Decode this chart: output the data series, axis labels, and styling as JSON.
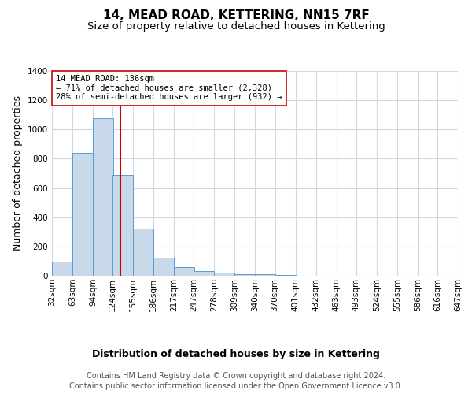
{
  "title": "14, MEAD ROAD, KETTERING, NN15 7RF",
  "subtitle": "Size of property relative to detached houses in Kettering",
  "xlabel": "Distribution of detached houses by size in Kettering",
  "ylabel": "Number of detached properties",
  "footnote1": "Contains HM Land Registry data © Crown copyright and database right 2024.",
  "footnote2": "Contains public sector information licensed under the Open Government Licence v3.0.",
  "bin_edges": [
    32,
    63,
    94,
    124,
    155,
    186,
    217,
    247,
    278,
    309,
    340,
    370,
    401,
    432,
    463,
    493,
    524,
    555,
    586,
    616,
    647
  ],
  "bar_heights": [
    95,
    840,
    1075,
    690,
    325,
    125,
    60,
    35,
    20,
    10,
    10,
    5,
    0,
    0,
    0,
    0,
    0,
    0,
    0,
    0
  ],
  "bar_color": "#c8d9ea",
  "bar_edge_color": "#5b9bd5",
  "vline_x": 136,
  "vline_color": "#cc0000",
  "annotation_line1": "14 MEAD ROAD: 136sqm",
  "annotation_line2": "← 71% of detached houses are smaller (2,328)",
  "annotation_line3": "28% of semi-detached houses are larger (932) →",
  "annotation_box_color": "#ffffff",
  "annotation_box_edge": "#cc0000",
  "ylim": [
    0,
    1400
  ],
  "yticks": [
    0,
    200,
    400,
    600,
    800,
    1000,
    1200,
    1400
  ],
  "background_color": "#ffffff",
  "grid_color": "#d0d8e8",
  "title_fontsize": 11,
  "subtitle_fontsize": 9.5,
  "axis_label_fontsize": 9,
  "tick_fontsize": 7.5,
  "annotation_fontsize": 7.5,
  "footnote_fontsize": 7
}
